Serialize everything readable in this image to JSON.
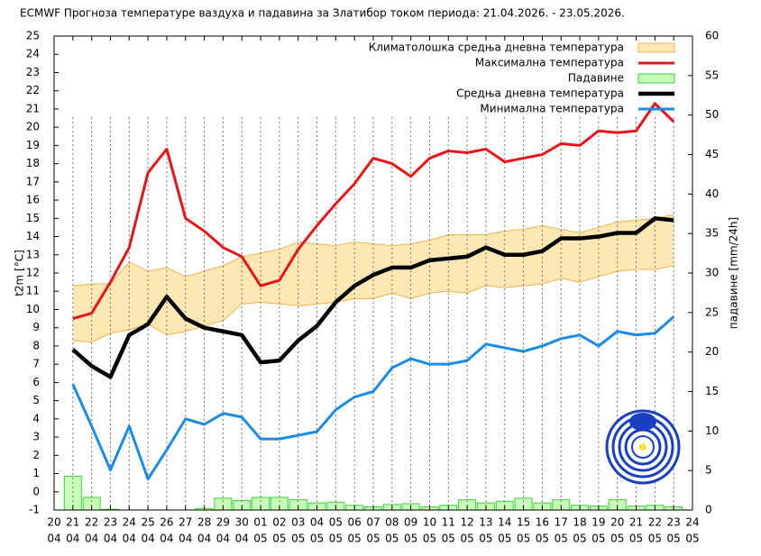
{
  "chart_data": {
    "type": "line",
    "title": "ECMWF Прогноза температуре ваздуха и падавина за Златибор током периода: 21.04.2026. - 23.05.2026.",
    "y_label": "t2m [°C]",
    "y2_label": "падавине [mm/24h]",
    "categories": [
      [
        "20",
        "04"
      ],
      [
        "21",
        "04"
      ],
      [
        "22",
        "04"
      ],
      [
        "23",
        "04"
      ],
      [
        "24",
        "04"
      ],
      [
        "25",
        "04"
      ],
      [
        "26",
        "04"
      ],
      [
        "27",
        "04"
      ],
      [
        "28",
        "04"
      ],
      [
        "29",
        "04"
      ],
      [
        "30",
        "04"
      ],
      [
        "01",
        "05"
      ],
      [
        "02",
        "05"
      ],
      [
        "03",
        "05"
      ],
      [
        "04",
        "05"
      ],
      [
        "05",
        "05"
      ],
      [
        "06",
        "05"
      ],
      [
        "07",
        "05"
      ],
      [
        "08",
        "05"
      ],
      [
        "09",
        "05"
      ],
      [
        "10",
        "05"
      ],
      [
        "11",
        "05"
      ],
      [
        "12",
        "05"
      ],
      [
        "13",
        "05"
      ],
      [
        "14",
        "05"
      ],
      [
        "15",
        "05"
      ],
      [
        "16",
        "05"
      ],
      [
        "17",
        "05"
      ],
      [
        "18",
        "05"
      ],
      [
        "19",
        "05"
      ],
      [
        "20",
        "05"
      ],
      [
        "21",
        "05"
      ],
      [
        "22",
        "05"
      ],
      [
        "23",
        "05"
      ],
      [
        "24",
        "05"
      ]
    ],
    "ylim": [
      -1,
      25
    ],
    "yticks": [
      -1,
      0,
      1,
      2,
      3,
      4,
      5,
      6,
      7,
      8,
      9,
      10,
      11,
      12,
      13,
      14,
      15,
      16,
      17,
      18,
      19,
      20,
      21,
      22,
      23,
      24,
      25
    ],
    "y2lim": [
      0,
      60
    ],
    "y2ticks": [
      0,
      5,
      10,
      15,
      20,
      25,
      30,
      35,
      40,
      45,
      50,
      55,
      60
    ],
    "legend": "top-right",
    "series": [
      {
        "name": "Климатолошка средња дневна температура",
        "type": "band",
        "color": "#fde8b4",
        "stroke": "#f0b44a",
        "upper": [
          null,
          11.3,
          11.4,
          11.4,
          12.6,
          12.1,
          12.3,
          11.8,
          12.1,
          12.4,
          12.9,
          13.1,
          13.3,
          13.7,
          13.6,
          13.5,
          13.7,
          13.6,
          13.5,
          13.6,
          13.8,
          14.1,
          14.1,
          14.1,
          14.3,
          14.4,
          14.6,
          14.4,
          14.2,
          14.5,
          14.8,
          14.9,
          15.0,
          15.2,
          null
        ],
        "lower": [
          null,
          8.3,
          8.2,
          8.7,
          8.9,
          9.2,
          8.6,
          8.8,
          9.1,
          9.4,
          10.3,
          10.4,
          10.3,
          10.2,
          10.3,
          10.4,
          10.6,
          10.6,
          10.9,
          10.6,
          10.9,
          11.0,
          10.9,
          11.3,
          11.2,
          11.3,
          11.4,
          11.7,
          11.5,
          11.8,
          12.1,
          12.2,
          12.2,
          12.4,
          null
        ]
      },
      {
        "name": "Максимална температура",
        "type": "line",
        "color": "#e8141a",
        "width": 3,
        "values": [
          null,
          9.5,
          9.8,
          11.5,
          13.4,
          17.5,
          18.8,
          15.0,
          14.3,
          13.4,
          12.9,
          11.3,
          11.6,
          13.3,
          14.6,
          15.8,
          16.9,
          18.3,
          18.0,
          17.3,
          18.3,
          18.7,
          18.6,
          18.8,
          18.1,
          18.3,
          18.5,
          19.1,
          19.0,
          19.8,
          19.7,
          19.8,
          21.3,
          20.3,
          null
        ]
      },
      {
        "name": "Падавине",
        "type": "bar",
        "axis": "y2",
        "color": "#c8ffb8",
        "stroke": "#3cd23c",
        "values": [
          null,
          4.3,
          1.6,
          0.1,
          0,
          0,
          0,
          0,
          0.2,
          1.5,
          1.2,
          1.6,
          1.6,
          1.3,
          0.9,
          1.0,
          0.6,
          0.4,
          0.7,
          0.8,
          0.4,
          0.6,
          1.3,
          0.9,
          1.1,
          1.5,
          0.9,
          1.3,
          0.6,
          0.5,
          1.3,
          0.5,
          0.6,
          0.4,
          null
        ]
      },
      {
        "name": "Средња дневна температура",
        "type": "line",
        "color": "#000000",
        "width": 4.5,
        "values": [
          null,
          7.8,
          6.9,
          6.3,
          8.6,
          9.2,
          10.7,
          9.5,
          9.0,
          8.8,
          8.6,
          7.1,
          7.2,
          8.3,
          9.1,
          10.4,
          11.3,
          11.9,
          12.3,
          12.3,
          12.7,
          12.8,
          12.9,
          13.4,
          13.0,
          13.0,
          13.2,
          13.9,
          13.9,
          14.0,
          14.2,
          14.2,
          15.0,
          14.9,
          null
        ]
      },
      {
        "name": "Минимална температура",
        "type": "line",
        "color": "#1a8ce8",
        "width": 3,
        "values": [
          null,
          5.9,
          3.6,
          1.2,
          3.6,
          0.7,
          2.3,
          4.0,
          3.7,
          4.3,
          4.1,
          2.9,
          2.9,
          3.1,
          3.3,
          4.5,
          5.2,
          5.5,
          6.8,
          7.3,
          7.0,
          7.0,
          7.2,
          8.1,
          7.9,
          7.7,
          8.0,
          8.4,
          8.6,
          8.0,
          8.8,
          8.6,
          8.7,
          9.6,
          null
        ]
      }
    ]
  }
}
